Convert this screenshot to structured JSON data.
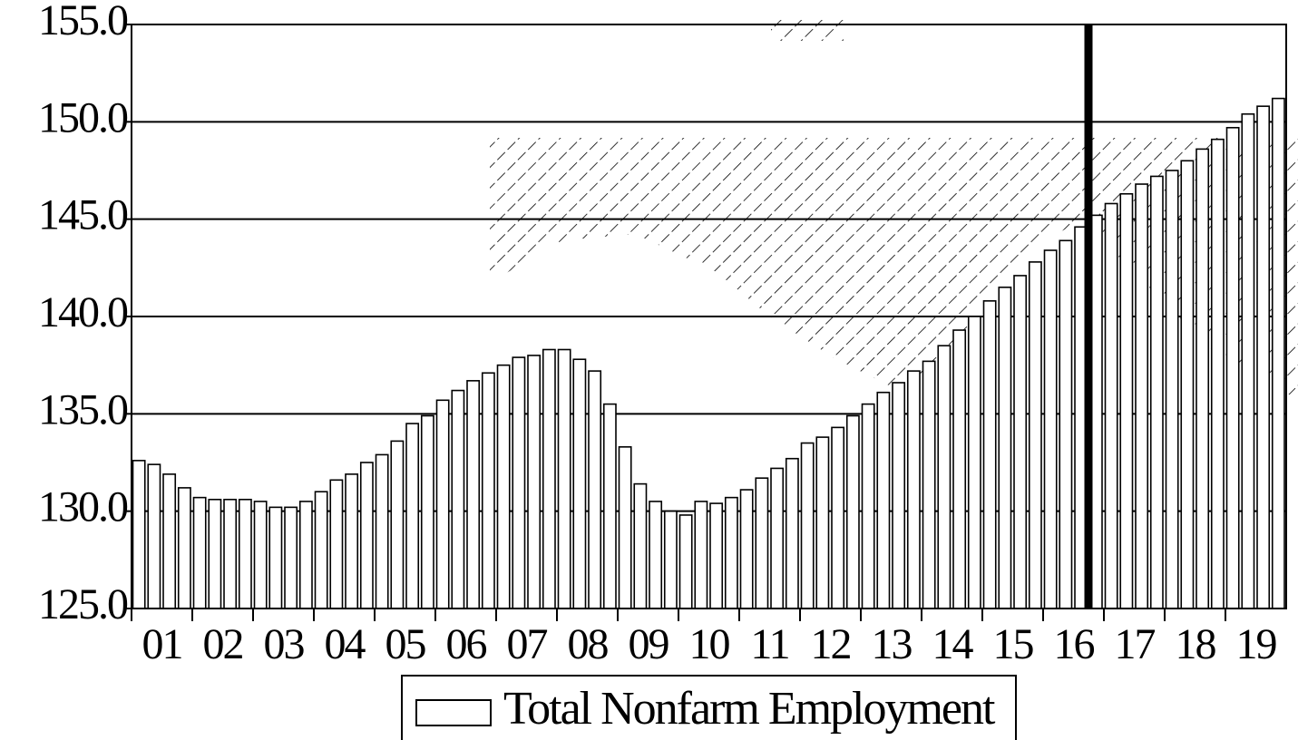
{
  "chart_data": {
    "type": "bar",
    "categories": [
      "01",
      null,
      null,
      null,
      "02",
      null,
      null,
      null,
      "03",
      null,
      null,
      null,
      "04",
      null,
      null,
      null,
      "05",
      null,
      null,
      null,
      "06",
      null,
      null,
      null,
      "07",
      null,
      null,
      null,
      "08",
      null,
      null,
      null,
      "09",
      null,
      null,
      null,
      "10",
      null,
      null,
      null,
      "11",
      null,
      null,
      null,
      "12",
      null,
      null,
      null,
      "13",
      null,
      null,
      null,
      "14",
      null,
      null,
      null,
      "15",
      null,
      null,
      null,
      "16",
      null,
      null,
      null,
      "17",
      null,
      null,
      null,
      "18",
      null,
      null,
      null,
      "19",
      null,
      null,
      null
    ],
    "series": [
      {
        "name": "Total Nonfarm Employment",
        "color": "#ffffff",
        "values": [
          132.6,
          132.4,
          131.9,
          131.2,
          130.7,
          130.6,
          130.6,
          130.6,
          130.5,
          130.2,
          130.2,
          130.5,
          131.0,
          131.6,
          131.9,
          132.5,
          132.9,
          133.6,
          134.5,
          134.9,
          135.7,
          136.2,
          136.7,
          137.1,
          137.5,
          137.9,
          138.0,
          138.3,
          138.3,
          137.8,
          137.2,
          135.5,
          133.3,
          131.4,
          130.5,
          130.0,
          129.8,
          130.5,
          130.4,
          130.7,
          131.1,
          131.7,
          132.2,
          132.7,
          133.5,
          133.8,
          134.3,
          134.9,
          135.5,
          136.1,
          136.6,
          137.2,
          137.7,
          138.5,
          139.3,
          140.0,
          140.8,
          141.5,
          142.1,
          142.8,
          143.4,
          143.9,
          144.6,
          145.2,
          145.8,
          146.3,
          146.8,
          147.2,
          147.5,
          148.0,
          148.6,
          149.1,
          149.7,
          150.4,
          150.8,
          151.2
        ]
      }
    ],
    "ylim": [
      125,
      155
    ],
    "yticks": [
      {
        "value": 125,
        "label": "125.0"
      },
      {
        "value": 130,
        "label": "130.0"
      },
      {
        "value": 135,
        "label": "135.0"
      },
      {
        "value": 140,
        "label": "140.0"
      },
      {
        "value": 145,
        "label": "145.0"
      },
      {
        "value": 150,
        "label": "150.0"
      },
      {
        "value": 155,
        "label": "155.0"
      }
    ],
    "grid": true
  }
}
